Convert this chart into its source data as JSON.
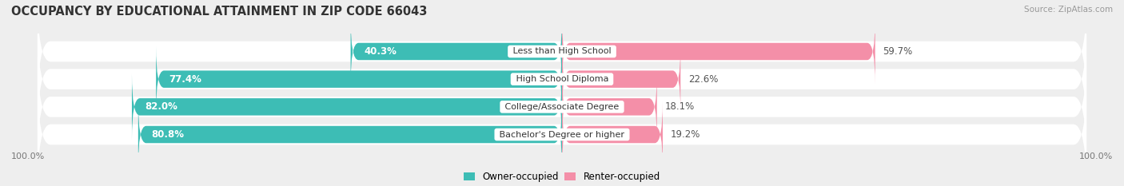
{
  "title": "OCCUPANCY BY EDUCATIONAL ATTAINMENT IN ZIP CODE 66043",
  "source": "Source: ZipAtlas.com",
  "categories": [
    "Less than High School",
    "High School Diploma",
    "College/Associate Degree",
    "Bachelor's Degree or higher"
  ],
  "owner_pct": [
    40.3,
    77.4,
    82.0,
    80.8
  ],
  "renter_pct": [
    59.7,
    22.6,
    18.1,
    19.2
  ],
  "owner_color": "#3DBDB5",
  "renter_color": "#F48FA8",
  "bg_color": "#eeeeee",
  "bar_bg_color": "#ffffff",
  "title_fontsize": 10.5,
  "label_fontsize": 8.5,
  "tick_fontsize": 8,
  "source_fontsize": 7.5,
  "bar_height": 0.62,
  "legend_owner": "Owner-occupied",
  "legend_renter": "Renter-occupied",
  "axis_label_left": "100.0%",
  "axis_label_right": "100.0%"
}
